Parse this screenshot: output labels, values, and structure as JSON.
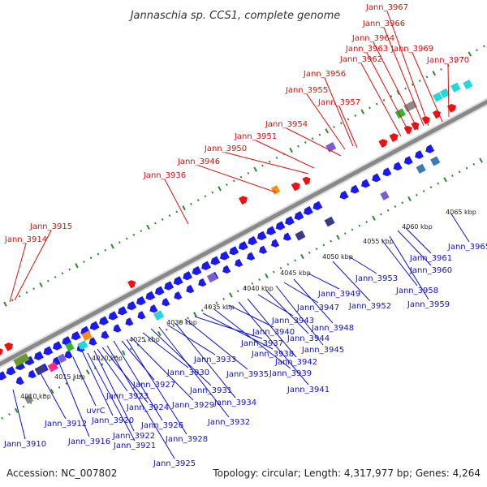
{
  "title": "Jannaschia sp. CCS1, complete genome",
  "footer": {
    "accession": "Accession: NC_007802",
    "topology": "Topology: circular; Length: 4,317,977 bp; Genes: 4,264"
  },
  "colors": {
    "forward_label": "#dd1111",
    "reverse_label": "#1111cc",
    "backbone": "#888888",
    "tick": "#2a8a2a"
  },
  "kbp_labels": [
    "4010 kbp",
    "4015 kbp",
    "4020 kbp",
    "4025 kbp",
    "4030 kbp",
    "4035 kbp",
    "4040 kbp",
    "4045 kbp",
    "4050 kbp",
    "4055 kbp",
    "4060 kbp",
    "4065 kbp"
  ],
  "forward_labels": [
    "Jann_3914",
    "Jann_3915",
    "Jann_3936",
    "Jann_3946",
    "Jann_3950",
    "Jann_3951",
    "Jann_3954",
    "Jann_3955",
    "Jann_3956",
    "Jann_3957",
    "Jann_3962",
    "Jann_3963",
    "Jann_3964",
    "Jann_3966",
    "Jann_3967",
    "Jann_3969",
    "Jann_3970"
  ],
  "reverse_labels": [
    "Jann_3910",
    "Jann_3912",
    "Jann_3916",
    "uvrC",
    "Jann_3920",
    "Jann_3921",
    "Jann_3922",
    "Jann_3923",
    "Jann_3924",
    "Jann_3925",
    "Jann_3926",
    "Jann_3927",
    "Jann_3928",
    "Jann_3929",
    "Jann_3930",
    "Jann_3931",
    "Jann_3932",
    "Jann_3933",
    "Jann_3934",
    "Jann_3935",
    "Jann_3937",
    "Jann_3938",
    "Jann_3939",
    "Jann_3940",
    "Jann_3941",
    "Jann_3942",
    "Jann_3943",
    "Jann_3944",
    "Jann_3945",
    "Jann_3947",
    "Jann_3948",
    "Jann_3949",
    "Jann_3952",
    "Jann_3953",
    "Jann_3958",
    "Jann_3959",
    "Jann_3960",
    "Jann_3961",
    "Jann_3965"
  ]
}
